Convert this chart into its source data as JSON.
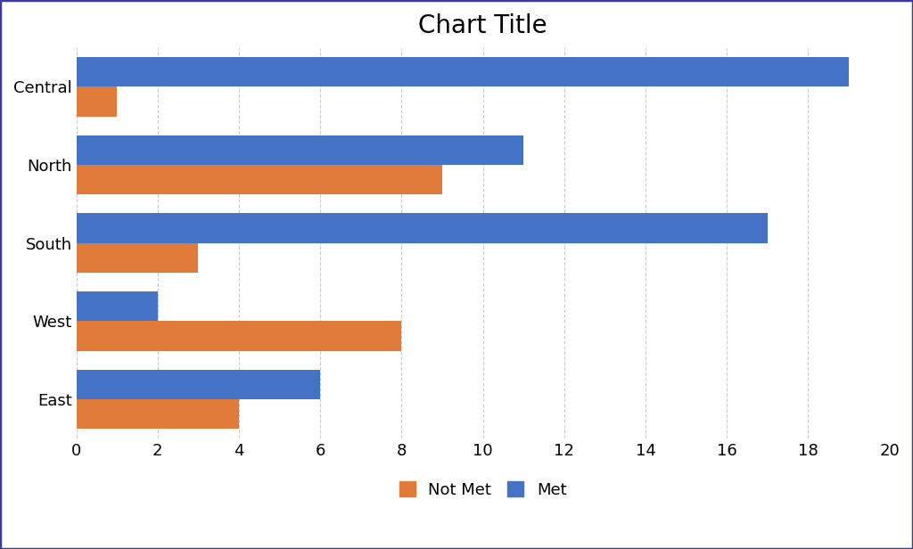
{
  "title": "Chart Title",
  "categories": [
    "Central",
    "North",
    "South",
    "West",
    "East"
  ],
  "not_met": [
    1,
    9,
    3,
    8,
    4
  ],
  "met": [
    19,
    11,
    17,
    2,
    6
  ],
  "not_met_color": "#E07B39",
  "met_color": "#4472C4",
  "xlim": [
    0,
    20
  ],
  "xticks": [
    0,
    2,
    4,
    6,
    8,
    10,
    12,
    14,
    16,
    18,
    20
  ],
  "title_fontsize": 20,
  "tick_fontsize": 13,
  "legend_fontsize": 13,
  "bar_height": 0.38,
  "background_color": "#FFFFFF",
  "grid_color": "#CCCCCC",
  "border_color": "#3A3AA0"
}
